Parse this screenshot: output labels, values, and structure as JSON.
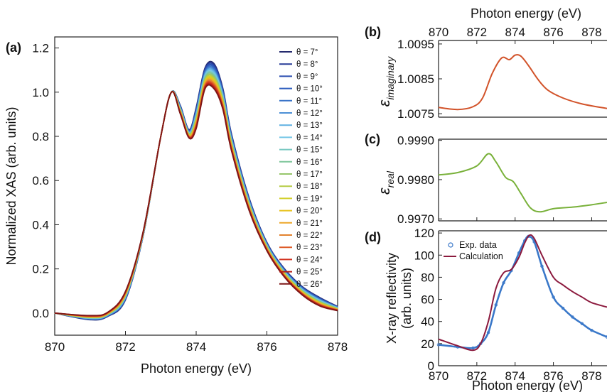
{
  "chart_data": [
    {
      "id": "a",
      "panel_label": "(a)",
      "type": "line",
      "xlabel": "Photon energy (eV)",
      "ylabel": "Normalized XAS (arb. units)",
      "xlim": [
        870,
        878
      ],
      "ylim": [
        -0.1,
        1.25
      ],
      "xticks": [
        "870",
        "872",
        "874",
        "876",
        "878"
      ],
      "yticks": [
        "0.0",
        "0.2",
        "0.4",
        "0.6",
        "0.8",
        "1.0",
        "1.2"
      ],
      "legend_position": "top-right",
      "x": [
        870,
        871,
        871.5,
        872,
        872.5,
        873,
        873.3,
        873.55,
        873.8,
        874.0,
        874.25,
        874.5,
        874.75,
        875.0,
        875.5,
        876,
        876.5,
        877,
        877.5,
        878
      ],
      "series": [
        {
          "name": "θ = 7°",
          "color": "#252a6e",
          "values": [
            0,
            -0.03,
            -0.015,
            0.06,
            0.35,
            0.8,
            1.0,
            0.94,
            0.83,
            0.93,
            1.11,
            1.13,
            1.02,
            0.81,
            0.52,
            0.32,
            0.2,
            0.12,
            0.07,
            0.03
          ]
        },
        {
          "name": "θ = 8°",
          "color": "#263a97",
          "values": [
            0,
            -0.029,
            -0.014,
            0.062,
            0.35,
            0.8,
            1.0,
            0.938,
            0.828,
            0.925,
            1.105,
            1.124,
            1.015,
            0.806,
            0.517,
            0.318,
            0.198,
            0.118,
            0.068,
            0.029
          ]
        },
        {
          "name": "θ = 9°",
          "color": "#2a4db0",
          "values": [
            0,
            -0.028,
            -0.013,
            0.064,
            0.351,
            0.8,
            1.0,
            0.936,
            0.826,
            0.92,
            1.1,
            1.118,
            1.01,
            0.802,
            0.514,
            0.316,
            0.196,
            0.116,
            0.066,
            0.028
          ]
        },
        {
          "name": "θ = 10°",
          "color": "#2f5fbf",
          "values": [
            0,
            -0.027,
            -0.012,
            0.066,
            0.352,
            0.8,
            1.0,
            0.934,
            0.824,
            0.915,
            1.095,
            1.112,
            1.005,
            0.798,
            0.511,
            0.314,
            0.194,
            0.114,
            0.064,
            0.027
          ]
        },
        {
          "name": "θ = 11°",
          "color": "#3a74c8",
          "values": [
            0,
            -0.026,
            -0.011,
            0.068,
            0.353,
            0.8,
            1.0,
            0.932,
            0.822,
            0.91,
            1.09,
            1.106,
            1.0,
            0.794,
            0.508,
            0.312,
            0.192,
            0.112,
            0.062,
            0.026
          ]
        },
        {
          "name": "θ = 12°",
          "color": "#4b8fd6",
          "values": [
            0,
            -0.025,
            -0.01,
            0.07,
            0.354,
            0.8,
            1.0,
            0.93,
            0.82,
            0.905,
            1.085,
            1.1,
            0.995,
            0.79,
            0.505,
            0.31,
            0.19,
            0.11,
            0.06,
            0.025
          ]
        },
        {
          "name": "θ = 13°",
          "color": "#5fb0e2",
          "values": [
            0,
            -0.024,
            -0.009,
            0.072,
            0.355,
            0.8,
            1.0,
            0.928,
            0.818,
            0.9,
            1.08,
            1.094,
            0.99,
            0.786,
            0.502,
            0.308,
            0.188,
            0.108,
            0.058,
            0.024
          ]
        },
        {
          "name": "θ = 14°",
          "color": "#74c6e6",
          "values": [
            0,
            -0.023,
            -0.008,
            0.074,
            0.356,
            0.8,
            1.0,
            0.926,
            0.816,
            0.895,
            1.075,
            1.088,
            0.985,
            0.782,
            0.499,
            0.306,
            0.186,
            0.106,
            0.056,
            0.023
          ]
        },
        {
          "name": "θ = 15°",
          "color": "#79c9c2",
          "values": [
            0,
            -0.022,
            -0.007,
            0.076,
            0.357,
            0.8,
            1.0,
            0.924,
            0.814,
            0.89,
            1.07,
            1.082,
            0.98,
            0.778,
            0.496,
            0.304,
            0.184,
            0.104,
            0.054,
            0.022
          ]
        },
        {
          "name": "θ = 16°",
          "color": "#7dc59a",
          "values": [
            0,
            -0.021,
            -0.006,
            0.078,
            0.358,
            0.8,
            1.0,
            0.922,
            0.812,
            0.885,
            1.065,
            1.076,
            0.975,
            0.774,
            0.493,
            0.302,
            0.182,
            0.102,
            0.052,
            0.021
          ]
        },
        {
          "name": "θ = 17°",
          "color": "#96c66b",
          "values": [
            0,
            -0.02,
            -0.005,
            0.08,
            0.359,
            0.8,
            1.0,
            0.92,
            0.81,
            0.88,
            1.06,
            1.07,
            0.97,
            0.77,
            0.49,
            0.3,
            0.18,
            0.1,
            0.05,
            0.02
          ]
        },
        {
          "name": "θ = 18°",
          "color": "#b5cc45",
          "values": [
            0,
            -0.019,
            -0.004,
            0.082,
            0.36,
            0.8,
            1.0,
            0.918,
            0.808,
            0.875,
            1.055,
            1.064,
            0.965,
            0.766,
            0.487,
            0.298,
            0.178,
            0.098,
            0.048,
            0.019
          ]
        },
        {
          "name": "θ = 19°",
          "color": "#d2cf2b",
          "values": [
            0,
            -0.018,
            -0.003,
            0.084,
            0.361,
            0.8,
            1.0,
            0.916,
            0.806,
            0.87,
            1.05,
            1.058,
            0.96,
            0.762,
            0.484,
            0.296,
            0.176,
            0.096,
            0.046,
            0.018
          ]
        },
        {
          "name": "θ = 20°",
          "color": "#e8c21c",
          "values": [
            0,
            -0.017,
            -0.002,
            0.086,
            0.362,
            0.8,
            1.0,
            0.914,
            0.804,
            0.865,
            1.045,
            1.052,
            0.955,
            0.758,
            0.481,
            0.294,
            0.174,
            0.094,
            0.044,
            0.017
          ]
        },
        {
          "name": "θ = 21°",
          "color": "#eda72a",
          "values": [
            0,
            -0.016,
            -0.001,
            0.088,
            0.363,
            0.8,
            1.0,
            0.912,
            0.802,
            0.86,
            1.04,
            1.046,
            0.95,
            0.754,
            0.478,
            0.292,
            0.172,
            0.092,
            0.042,
            0.016
          ]
        },
        {
          "name": "θ = 22°",
          "color": "#e3822d",
          "values": [
            0,
            -0.015,
            0.0,
            0.09,
            0.364,
            0.8,
            1.0,
            0.91,
            0.8,
            0.855,
            1.035,
            1.04,
            0.945,
            0.75,
            0.475,
            0.29,
            0.17,
            0.09,
            0.04,
            0.015
          ]
        },
        {
          "name": "θ = 23°",
          "color": "#dd5a28",
          "values": [
            0,
            -0.014,
            0.001,
            0.092,
            0.365,
            0.8,
            1.0,
            0.908,
            0.798,
            0.85,
            1.03,
            1.034,
            0.94,
            0.746,
            0.472,
            0.288,
            0.168,
            0.088,
            0.038,
            0.014
          ]
        },
        {
          "name": "θ = 24°",
          "color": "#d2321f",
          "values": [
            0,
            -0.013,
            0.002,
            0.094,
            0.366,
            0.8,
            1.0,
            0.906,
            0.796,
            0.845,
            1.025,
            1.028,
            0.935,
            0.742,
            0.469,
            0.286,
            0.166,
            0.086,
            0.036,
            0.013
          ]
        },
        {
          "name": "θ = 25°",
          "color": "#b41d14",
          "values": [
            0,
            -0.012,
            0.003,
            0.096,
            0.367,
            0.8,
            1.0,
            0.904,
            0.794,
            0.84,
            1.02,
            1.022,
            0.93,
            0.738,
            0.466,
            0.284,
            0.164,
            0.084,
            0.034,
            0.012
          ]
        },
        {
          "name": "θ = 26°",
          "color": "#7d1616",
          "values": [
            0,
            -0.011,
            0.004,
            0.098,
            0.368,
            0.8,
            1.0,
            0.902,
            0.792,
            0.835,
            1.015,
            1.016,
            0.925,
            0.734,
            0.463,
            0.282,
            0.162,
            0.082,
            0.032,
            0.011
          ]
        }
      ]
    },
    {
      "id": "b",
      "panel_label": "(b)",
      "type": "line",
      "xlabel": "Photon energy (eV)",
      "ylabel_symbol": "ε",
      "ylabel_sub": "imaginary",
      "xlim": [
        870,
        878.8
      ],
      "ylim": [
        1.0074,
        1.0096
      ],
      "xticks": [
        "870",
        "872",
        "874",
        "876",
        "878"
      ],
      "yticks": [
        "1.0075",
        "1.0085",
        "1.0095"
      ],
      "series": [
        {
          "name": "",
          "color": "#d2532a",
          "x": [
            870,
            871,
            871.8,
            872.3,
            872.8,
            873.3,
            873.7,
            874.0,
            874.3,
            874.7,
            875.2,
            875.7,
            876.5,
            877.5,
            878.8
          ],
          "values": [
            1.00768,
            1.00762,
            1.0077,
            1.00795,
            1.00865,
            1.0091,
            1.00905,
            1.00918,
            1.00915,
            1.00888,
            1.00848,
            1.00818,
            1.00795,
            1.00778,
            1.00765
          ]
        }
      ]
    },
    {
      "id": "c",
      "panel_label": "(c)",
      "type": "line",
      "ylabel_symbol": "ε",
      "ylabel_sub": "real",
      "xlim": [
        870,
        878.8
      ],
      "ylim": [
        0.99695,
        0.99903
      ],
      "yticks": [
        "0.9970",
        "0.9980",
        "0.9990"
      ],
      "series": [
        {
          "name": "",
          "color": "#79b13a",
          "x": [
            870,
            871,
            872,
            872.6,
            873.0,
            873.5,
            873.9,
            874.3,
            874.8,
            875.3,
            876,
            877,
            878,
            878.8
          ],
          "values": [
            0.99812,
            0.99818,
            0.99835,
            0.99866,
            0.99845,
            0.99806,
            0.99795,
            0.99765,
            0.99728,
            0.99718,
            0.99726,
            0.9973,
            0.99736,
            0.99742
          ]
        }
      ]
    },
    {
      "id": "d",
      "panel_label": "(d)",
      "type": "line",
      "xlabel": "Photon energy (eV)",
      "ylabel": "X-ray reflectivity",
      "ylabel2": "(arb. units)",
      "xlim": [
        870,
        878.8
      ],
      "ylim": [
        0,
        122
      ],
      "xticks": [
        "870",
        "872",
        "874",
        "876",
        "878"
      ],
      "yticks": [
        "0",
        "20",
        "40",
        "60",
        "80",
        "100",
        "120"
      ],
      "legend_position": "top-left",
      "series": [
        {
          "name": "Exp. data",
          "color": "#3a78c9",
          "marker": "circle",
          "x": [
            870,
            871,
            871.8,
            872.2,
            872.6,
            873.0,
            873.4,
            873.8,
            874.2,
            874.5,
            874.7,
            875.0,
            875.4,
            876,
            876.5,
            877,
            877.5,
            878,
            878.8
          ],
          "values": [
            19,
            17,
            16,
            20,
            30,
            55,
            75,
            86,
            102,
            113,
            117,
            112,
            90,
            62,
            52,
            44,
            38,
            32,
            26
          ]
        },
        {
          "name": "Calculation",
          "color": "#8c1a3e",
          "x": [
            870,
            871,
            871.8,
            872.2,
            872.6,
            873.0,
            873.4,
            873.8,
            874.2,
            874.5,
            874.75,
            875.0,
            875.4,
            876,
            876.5,
            877,
            877.5,
            878,
            878.8
          ],
          "values": [
            24,
            18,
            14,
            20,
            40,
            70,
            84,
            87,
            98,
            111,
            118,
            115,
            100,
            80,
            73,
            67,
            62,
            57,
            53
          ]
        }
      ]
    }
  ]
}
